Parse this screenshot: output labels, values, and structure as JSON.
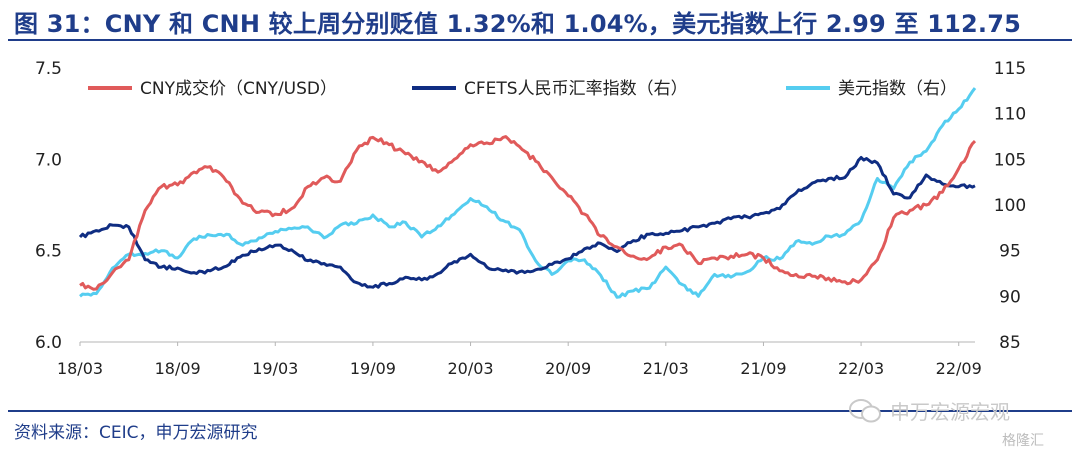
{
  "title": "图 31：CNY 和 CNH 较上周分别贬值 1.32%和 1.04%，美元指数上行 2.99 至 112.75",
  "source": "资料来源：CEIC，申万宏源研究",
  "watermark": "申万宏源宏观",
  "watermark2": "格隆汇",
  "colors": {
    "title": "#1f3d8a",
    "cny": "#e05a5a",
    "cfets": "#0f2d82",
    "usd": "#55cdf0"
  },
  "chart_data": {
    "type": "line",
    "x_ticks": [
      "18/03",
      "18/09",
      "19/03",
      "19/09",
      "20/03",
      "20/09",
      "21/03",
      "21/09",
      "22/03",
      "22/09"
    ],
    "x_range": [
      "2018-03",
      "2022-10"
    ],
    "y_left": {
      "ticks": [
        "6.0",
        "6.5",
        "7.0",
        "7.5"
      ],
      "min": 6.0,
      "max": 7.5
    },
    "y_right": {
      "ticks": [
        "85",
        "90",
        "95",
        "100",
        "105",
        "110",
        "115"
      ],
      "min": 85,
      "max": 115
    },
    "legend_position": "top",
    "series": [
      {
        "name": "CNY成交价（CNY/USD）",
        "axis": "left",
        "color": "#e05a5a",
        "x": [
          "2018-03",
          "2018-04",
          "2018-05",
          "2018-06",
          "2018-07",
          "2018-08",
          "2018-09",
          "2018-10",
          "2018-11",
          "2018-12",
          "2019-01",
          "2019-02",
          "2019-03",
          "2019-04",
          "2019-05",
          "2019-06",
          "2019-07",
          "2019-08",
          "2019-09",
          "2019-10",
          "2019-11",
          "2019-12",
          "2020-01",
          "2020-02",
          "2020-03",
          "2020-04",
          "2020-05",
          "2020-06",
          "2020-07",
          "2020-08",
          "2020-09",
          "2020-10",
          "2020-11",
          "2020-12",
          "2021-01",
          "2021-02",
          "2021-03",
          "2021-04",
          "2021-05",
          "2021-06",
          "2021-07",
          "2021-08",
          "2021-09",
          "2021-10",
          "2021-11",
          "2021-12",
          "2022-01",
          "2022-02",
          "2022-03",
          "2022-04",
          "2022-05",
          "2022-06",
          "2022-07",
          "2022-08",
          "2022-09",
          "2022-10"
        ],
        "values": [
          6.31,
          6.29,
          6.38,
          6.45,
          6.72,
          6.85,
          6.86,
          6.93,
          6.96,
          6.88,
          6.76,
          6.71,
          6.7,
          6.73,
          6.85,
          6.9,
          6.88,
          7.05,
          7.12,
          7.08,
          7.03,
          6.99,
          6.93,
          7.0,
          7.08,
          7.09,
          7.12,
          7.07,
          6.99,
          6.9,
          6.8,
          6.7,
          6.58,
          6.52,
          6.47,
          6.46,
          6.52,
          6.53,
          6.43,
          6.46,
          6.47,
          6.48,
          6.46,
          6.39,
          6.37,
          6.36,
          6.35,
          6.33,
          6.34,
          6.45,
          6.68,
          6.72,
          6.75,
          6.82,
          6.95,
          7.1
        ]
      },
      {
        "name": "CFETS人民币汇率指数（右）",
        "axis": "right",
        "color": "#0f2d82",
        "x": [
          "2018-03",
          "2018-04",
          "2018-05",
          "2018-06",
          "2018-07",
          "2018-08",
          "2018-09",
          "2018-10",
          "2018-11",
          "2018-12",
          "2019-01",
          "2019-02",
          "2019-03",
          "2019-04",
          "2019-05",
          "2019-06",
          "2019-07",
          "2019-08",
          "2019-09",
          "2019-10",
          "2019-11",
          "2019-12",
          "2020-01",
          "2020-02",
          "2020-03",
          "2020-04",
          "2020-05",
          "2020-06",
          "2020-07",
          "2020-08",
          "2020-09",
          "2020-10",
          "2020-11",
          "2020-12",
          "2021-01",
          "2021-02",
          "2021-03",
          "2021-04",
          "2021-05",
          "2021-06",
          "2021-07",
          "2021-08",
          "2021-09",
          "2021-10",
          "2021-11",
          "2021-12",
          "2022-01",
          "2022-02",
          "2022-03",
          "2022-04",
          "2022-05",
          "2022-06",
          "2022-07",
          "2022-08",
          "2022-09",
          "2022-10"
        ],
        "values": [
          96.5,
          97.2,
          97.8,
          97.6,
          94.0,
          93.2,
          93.1,
          92.6,
          92.8,
          93.3,
          94.5,
          95.2,
          95.6,
          95.1,
          93.9,
          93.6,
          93.2,
          91.5,
          91.0,
          91.4,
          92.1,
          91.8,
          92.5,
          93.8,
          94.6,
          93.2,
          92.8,
          92.7,
          92.9,
          93.5,
          94.1,
          95.2,
          95.8,
          94.9,
          96.1,
          96.8,
          96.9,
          97.2,
          97.6,
          98.0,
          98.5,
          98.7,
          99.1,
          99.6,
          101.3,
          102.4,
          102.9,
          103.0,
          105.2,
          104.6,
          101.2,
          100.8,
          103.3,
          102.3,
          102.0,
          102.1
        ]
      },
      {
        "name": "美元指数（右）",
        "axis": "right",
        "color": "#55cdf0",
        "x": [
          "2018-03",
          "2018-04",
          "2018-05",
          "2018-06",
          "2018-07",
          "2018-08",
          "2018-09",
          "2018-10",
          "2018-11",
          "2018-12",
          "2019-01",
          "2019-02",
          "2019-03",
          "2019-04",
          "2019-05",
          "2019-06",
          "2019-07",
          "2019-08",
          "2019-09",
          "2019-10",
          "2019-11",
          "2019-12",
          "2020-01",
          "2020-02",
          "2020-03",
          "2020-04",
          "2020-05",
          "2020-06",
          "2020-07",
          "2020-08",
          "2020-09",
          "2020-10",
          "2020-11",
          "2020-12",
          "2021-01",
          "2021-02",
          "2021-03",
          "2021-04",
          "2021-05",
          "2021-06",
          "2021-07",
          "2021-08",
          "2021-09",
          "2021-10",
          "2021-11",
          "2021-12",
          "2022-01",
          "2022-02",
          "2022-03",
          "2022-04",
          "2022-05",
          "2022-06",
          "2022-07",
          "2022-08",
          "2022-09",
          "2022-10"
        ],
        "values": [
          90.0,
          90.3,
          93.1,
          94.6,
          94.7,
          95.0,
          94.2,
          96.3,
          96.7,
          96.8,
          95.6,
          96.4,
          97.1,
          97.4,
          97.6,
          96.4,
          97.8,
          98.0,
          98.9,
          97.6,
          98.1,
          96.5,
          97.7,
          99.0,
          100.7,
          99.8,
          98.3,
          97.3,
          93.9,
          92.4,
          93.9,
          94.0,
          92.3,
          89.9,
          90.6,
          90.9,
          93.2,
          91.3,
          90.0,
          92.4,
          92.1,
          92.7,
          94.2,
          94.1,
          96.0,
          95.7,
          96.6,
          96.8,
          98.3,
          102.9,
          101.8,
          104.7,
          105.9,
          108.7,
          110.5,
          112.8
        ]
      }
    ]
  }
}
